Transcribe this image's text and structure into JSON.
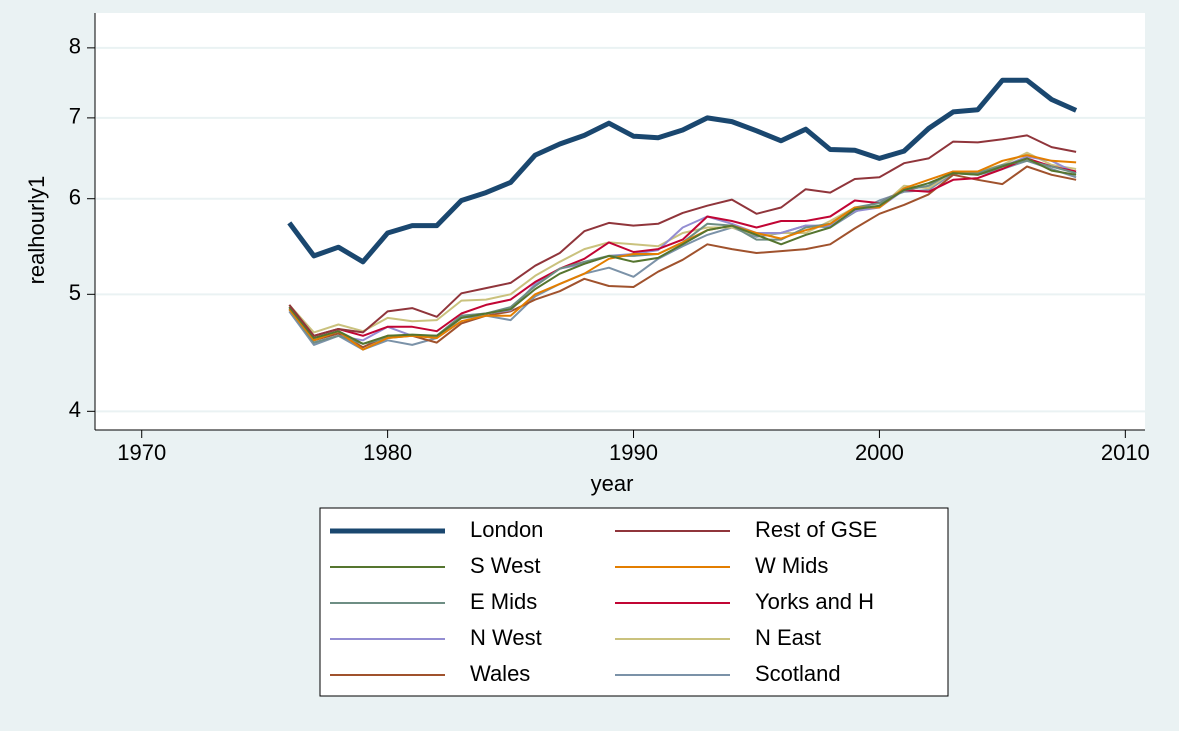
{
  "chart_data": {
    "type": "line",
    "y_label": "realhourly1",
    "x_label": "year",
    "log_y": true,
    "grid": true,
    "legend_position": "bottom",
    "xlim": [
      1968.1,
      2010.8
    ],
    "xticks": [
      1970,
      1980,
      1990,
      2000,
      2010
    ],
    "ylim": [
      3.86,
      8.55
    ],
    "yticks": [
      4,
      5,
      6,
      7,
      8
    ],
    "x": [
      1976,
      1977,
      1978,
      1979,
      1980,
      1981,
      1982,
      1983,
      1984,
      1985,
      1986,
      1987,
      1988,
      1989,
      1990,
      1991,
      1992,
      1993,
      1994,
      1995,
      1996,
      1997,
      1998,
      1999,
      2000,
      2001,
      2002,
      2003,
      2004,
      2005,
      2006,
      2007,
      2008
    ],
    "series": [
      {
        "name": "London",
        "color": "#1a476f",
        "line_width": 5,
        "values": [
          5.73,
          5.38,
          5.47,
          5.32,
          5.62,
          5.7,
          5.7,
          5.98,
          6.07,
          6.19,
          6.52,
          6.66,
          6.77,
          6.93,
          6.76,
          6.74,
          6.84,
          7.0,
          6.95,
          6.83,
          6.7,
          6.85,
          6.59,
          6.58,
          6.48,
          6.57,
          6.86,
          7.08,
          7.11,
          7.52,
          7.52,
          7.25,
          7.1
        ]
      },
      {
        "name": "Rest of GSE",
        "color": "#90353b",
        "line_width": 2,
        "values": [
          4.9,
          4.62,
          4.68,
          4.65,
          4.84,
          4.87,
          4.79,
          5.01,
          5.06,
          5.11,
          5.28,
          5.41,
          5.64,
          5.73,
          5.7,
          5.72,
          5.84,
          5.92,
          5.99,
          5.83,
          5.9,
          6.11,
          6.07,
          6.23,
          6.25,
          6.42,
          6.48,
          6.69,
          6.68,
          6.72,
          6.77,
          6.62,
          6.56
        ]
      },
      {
        "name": "S West",
        "color": "#55752f",
        "line_width": 2,
        "values": [
          4.88,
          4.6,
          4.66,
          4.55,
          4.62,
          4.63,
          4.62,
          4.78,
          4.82,
          4.86,
          5.05,
          5.2,
          5.3,
          5.38,
          5.32,
          5.36,
          5.5,
          5.65,
          5.7,
          5.6,
          5.5,
          5.6,
          5.68,
          5.88,
          5.92,
          6.1,
          6.18,
          6.3,
          6.28,
          6.38,
          6.48,
          6.33,
          6.28
        ]
      },
      {
        "name": "W Mids",
        "color": "#e37e00",
        "line_width": 2,
        "values": [
          4.86,
          4.58,
          4.66,
          4.5,
          4.6,
          4.62,
          4.6,
          4.75,
          4.8,
          4.8,
          5.0,
          5.1,
          5.2,
          5.35,
          5.4,
          5.4,
          5.52,
          5.65,
          5.7,
          5.62,
          5.56,
          5.65,
          5.72,
          5.9,
          5.9,
          6.12,
          6.22,
          6.32,
          6.32,
          6.45,
          6.52,
          6.45,
          6.43
        ]
      },
      {
        "name": "E Mids",
        "color": "#6e8e84",
        "line_width": 2,
        "values": [
          4.86,
          4.56,
          4.62,
          4.55,
          4.6,
          4.62,
          4.62,
          4.8,
          4.82,
          4.88,
          5.08,
          5.25,
          5.32,
          5.38,
          5.38,
          5.4,
          5.52,
          5.72,
          5.7,
          5.55,
          5.55,
          5.68,
          5.72,
          5.9,
          5.95,
          6.1,
          6.15,
          6.32,
          6.3,
          6.4,
          6.45,
          6.38,
          6.3
        ]
      },
      {
        "name": "Yorks and H",
        "color": "#c10534",
        "line_width": 2,
        "values": [
          4.86,
          4.62,
          4.68,
          4.62,
          4.7,
          4.7,
          4.66,
          4.82,
          4.9,
          4.95,
          5.12,
          5.25,
          5.35,
          5.52,
          5.42,
          5.45,
          5.55,
          5.8,
          5.75,
          5.68,
          5.75,
          5.75,
          5.8,
          5.98,
          5.95,
          6.1,
          6.08,
          6.22,
          6.24,
          6.35,
          6.48,
          6.38,
          6.32
        ]
      },
      {
        "name": "N West",
        "color": "#938dd2",
        "line_width": 2,
        "values": [
          4.86,
          4.56,
          4.62,
          4.58,
          4.7,
          4.62,
          4.62,
          4.8,
          4.82,
          4.85,
          5.1,
          5.25,
          5.3,
          5.38,
          5.4,
          5.44,
          5.68,
          5.8,
          5.72,
          5.62,
          5.62,
          5.7,
          5.7,
          5.86,
          5.9,
          6.1,
          6.15,
          6.32,
          6.3,
          6.38,
          6.5,
          6.45,
          6.3
        ]
      },
      {
        "name": "N East",
        "color": "#cac27e",
        "line_width": 2,
        "values": [
          4.9,
          4.65,
          4.72,
          4.66,
          4.78,
          4.75,
          4.76,
          4.94,
          4.95,
          5.0,
          5.18,
          5.32,
          5.45,
          5.52,
          5.5,
          5.48,
          5.62,
          5.68,
          5.68,
          5.6,
          5.62,
          5.62,
          5.75,
          5.9,
          5.9,
          6.15,
          6.12,
          6.32,
          6.32,
          6.4,
          6.55,
          6.4,
          6.35
        ]
      },
      {
        "name": "Wales",
        "color": "#a0522d",
        "line_width": 2,
        "values": [
          4.88,
          4.58,
          4.64,
          4.52,
          4.62,
          4.62,
          4.56,
          4.73,
          4.8,
          4.84,
          4.95,
          5.03,
          5.15,
          5.08,
          5.07,
          5.22,
          5.34,
          5.5,
          5.45,
          5.41,
          5.43,
          5.45,
          5.5,
          5.67,
          5.83,
          5.93,
          6.05,
          6.28,
          6.22,
          6.17,
          6.38,
          6.28,
          6.22
        ]
      },
      {
        "name": "Scotland",
        "color": "#7b92a8",
        "line_width": 2,
        "values": [
          4.84,
          4.54,
          4.62,
          4.5,
          4.58,
          4.54,
          4.6,
          4.78,
          4.8,
          4.76,
          4.98,
          5.1,
          5.2,
          5.26,
          5.17,
          5.35,
          5.48,
          5.6,
          5.68,
          5.58,
          5.62,
          5.7,
          5.68,
          5.85,
          5.98,
          6.08,
          6.1,
          6.3,
          6.28,
          6.35,
          6.45,
          6.35,
          6.25
        ]
      }
    ]
  }
}
